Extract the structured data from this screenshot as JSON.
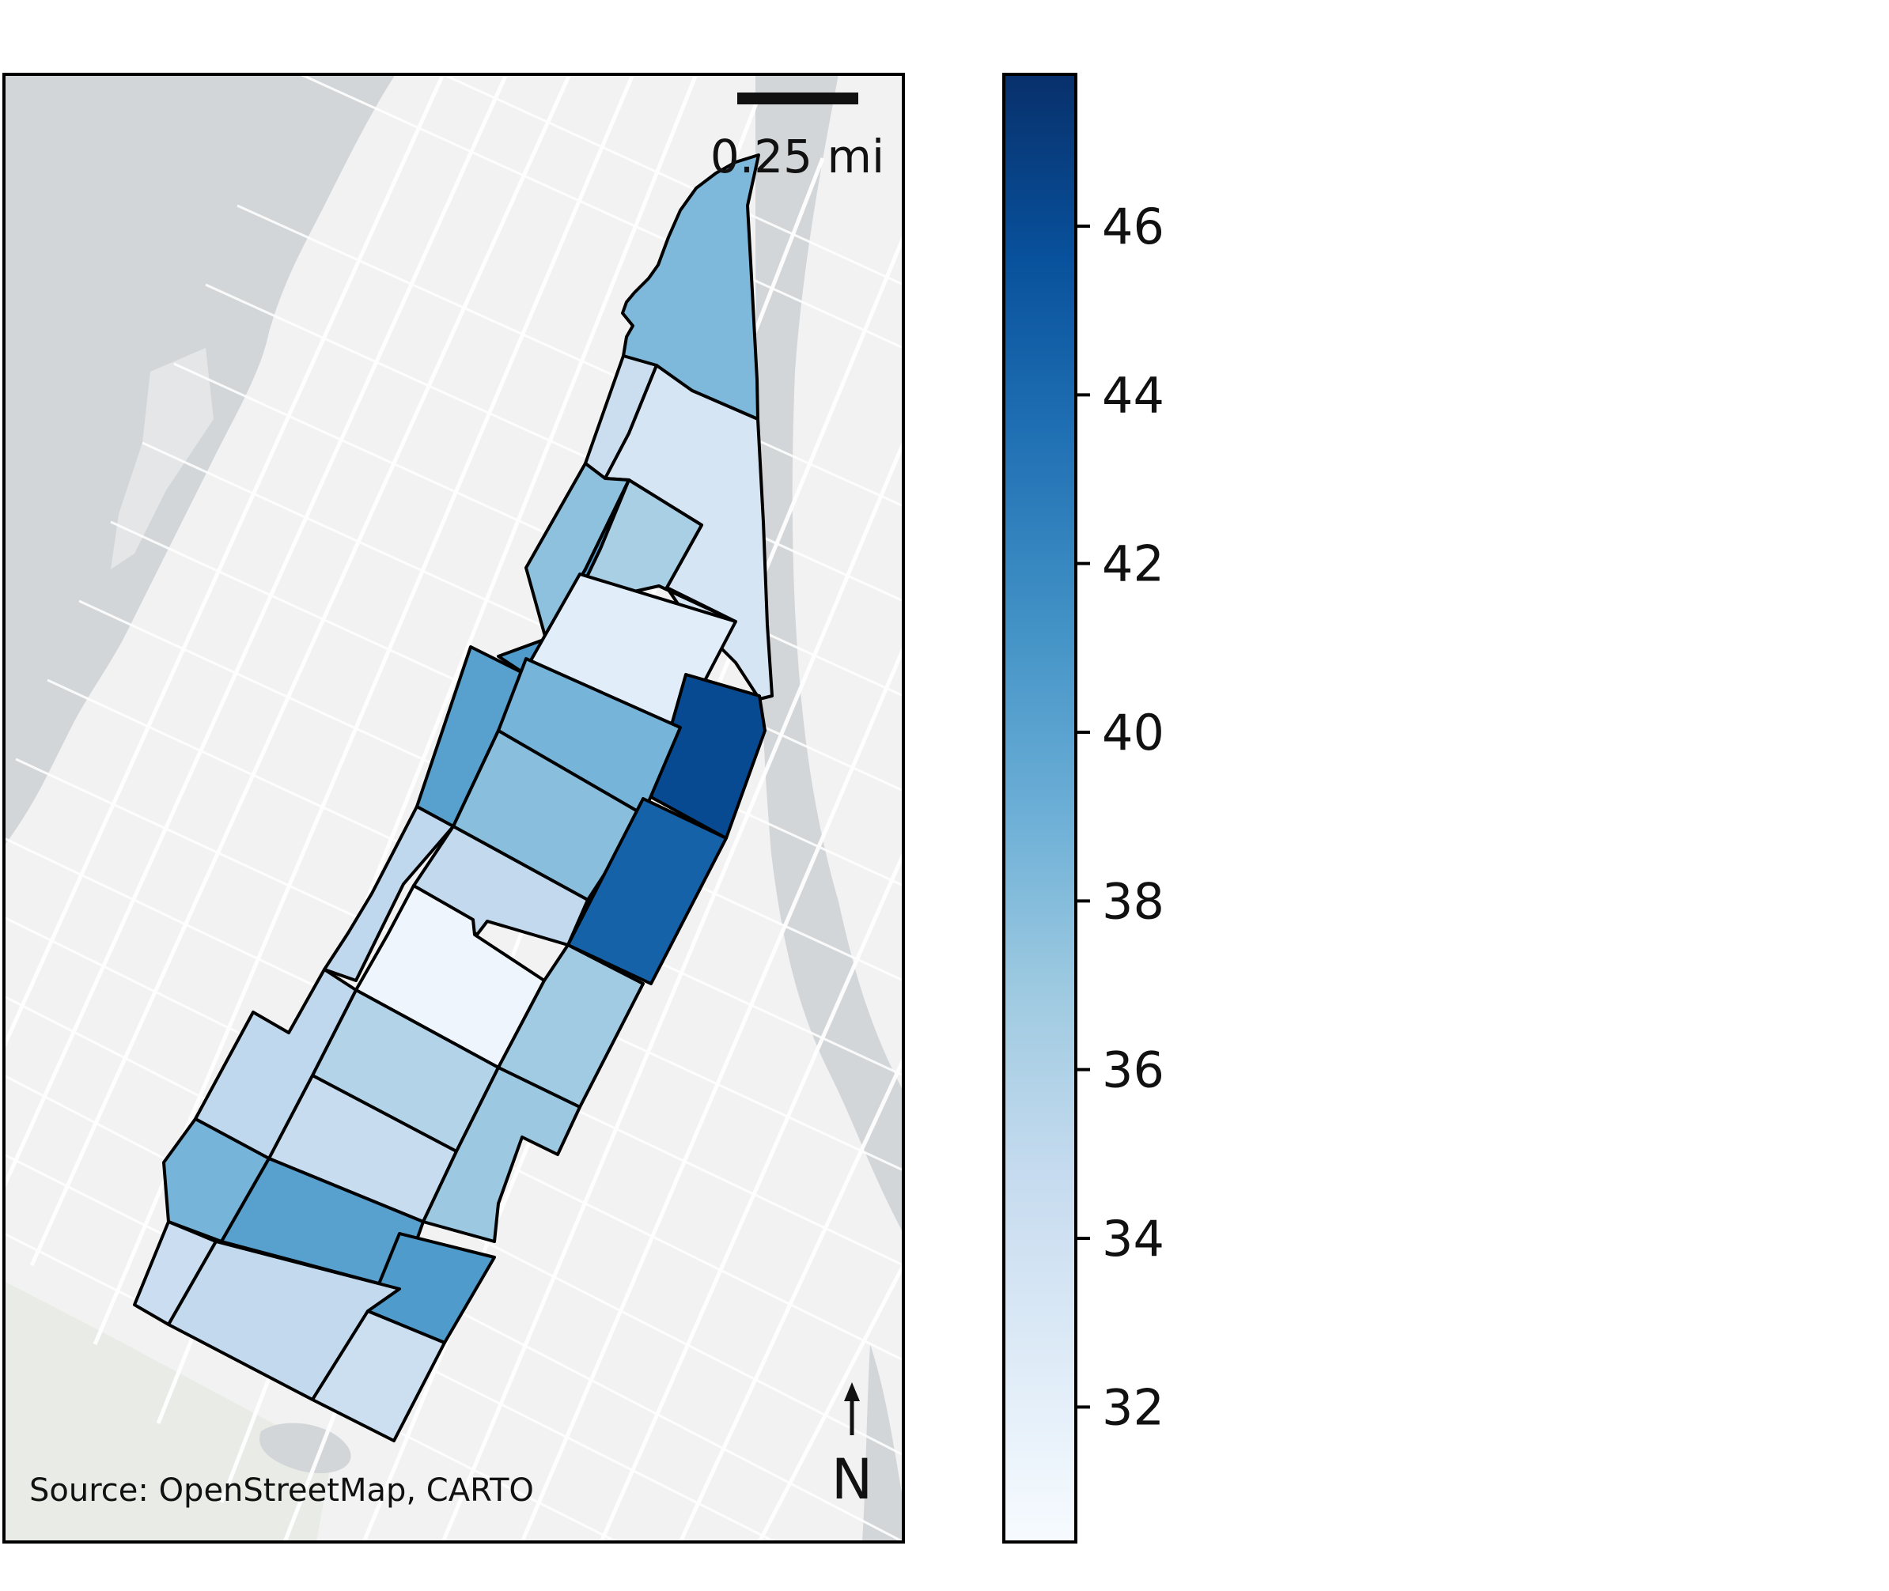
{
  "map": {
    "attribution": "Source: OpenStreetMap, CARTO",
    "scale_bar_label": "0.25 mi",
    "north_label": "N",
    "colors": {
      "water": "#d3d6d8",
      "land": "#f2f2f2",
      "park": "#e9ece6",
      "street": "#ffffff",
      "boundary": "#000000"
    }
  },
  "chart_data": {
    "type": "choropleth",
    "title": "",
    "colormap": "Blues",
    "colorbar": {
      "min": 30.4,
      "max": 47.8,
      "ticks": [
        "32",
        "34",
        "36",
        "38",
        "40",
        "42",
        "44",
        "46"
      ],
      "placement": "right"
    },
    "regions": [
      {
        "id": "north-tip",
        "value": 38.3
      },
      {
        "id": "n-strip-west",
        "value": 34.4
      },
      {
        "id": "n-large-east",
        "value": 33.4
      },
      {
        "id": "w-strip-a",
        "value": 37.6
      },
      {
        "id": "w-strip-b",
        "value": 40.6
      },
      {
        "id": "block-light-blue",
        "value": 36.3
      },
      {
        "id": "block-very-light",
        "value": 32.3
      },
      {
        "id": "block-dark-ne",
        "value": 46.1
      },
      {
        "id": "block-west-mid",
        "value": 40.1
      },
      {
        "id": "block-mid-a",
        "value": 38.6
      },
      {
        "id": "block-mid-b",
        "value": 37.8
      },
      {
        "id": "block-dark-e",
        "value": 44.5
      },
      {
        "id": "strip-west-long",
        "value": 35.1
      },
      {
        "id": "block-light-c",
        "value": 34.9
      },
      {
        "id": "block-lightest",
        "value": 31.2
      },
      {
        "id": "block-e-lower",
        "value": 36.8
      },
      {
        "id": "block-s-a",
        "value": 35.8
      },
      {
        "id": "block-s-b",
        "value": 34.6
      },
      {
        "id": "block-s-east",
        "value": 37.0
      },
      {
        "id": "block-sw-a",
        "value": 35.1
      },
      {
        "id": "block-sw-b",
        "value": 38.6
      },
      {
        "id": "block-sw-c",
        "value": 40.1
      },
      {
        "id": "block-s-d",
        "value": 40.6
      },
      {
        "id": "block-south-a",
        "value": 34.3
      },
      {
        "id": "block-south-b",
        "value": 34.9
      },
      {
        "id": "block-south-c",
        "value": 34.2
      }
    ]
  }
}
